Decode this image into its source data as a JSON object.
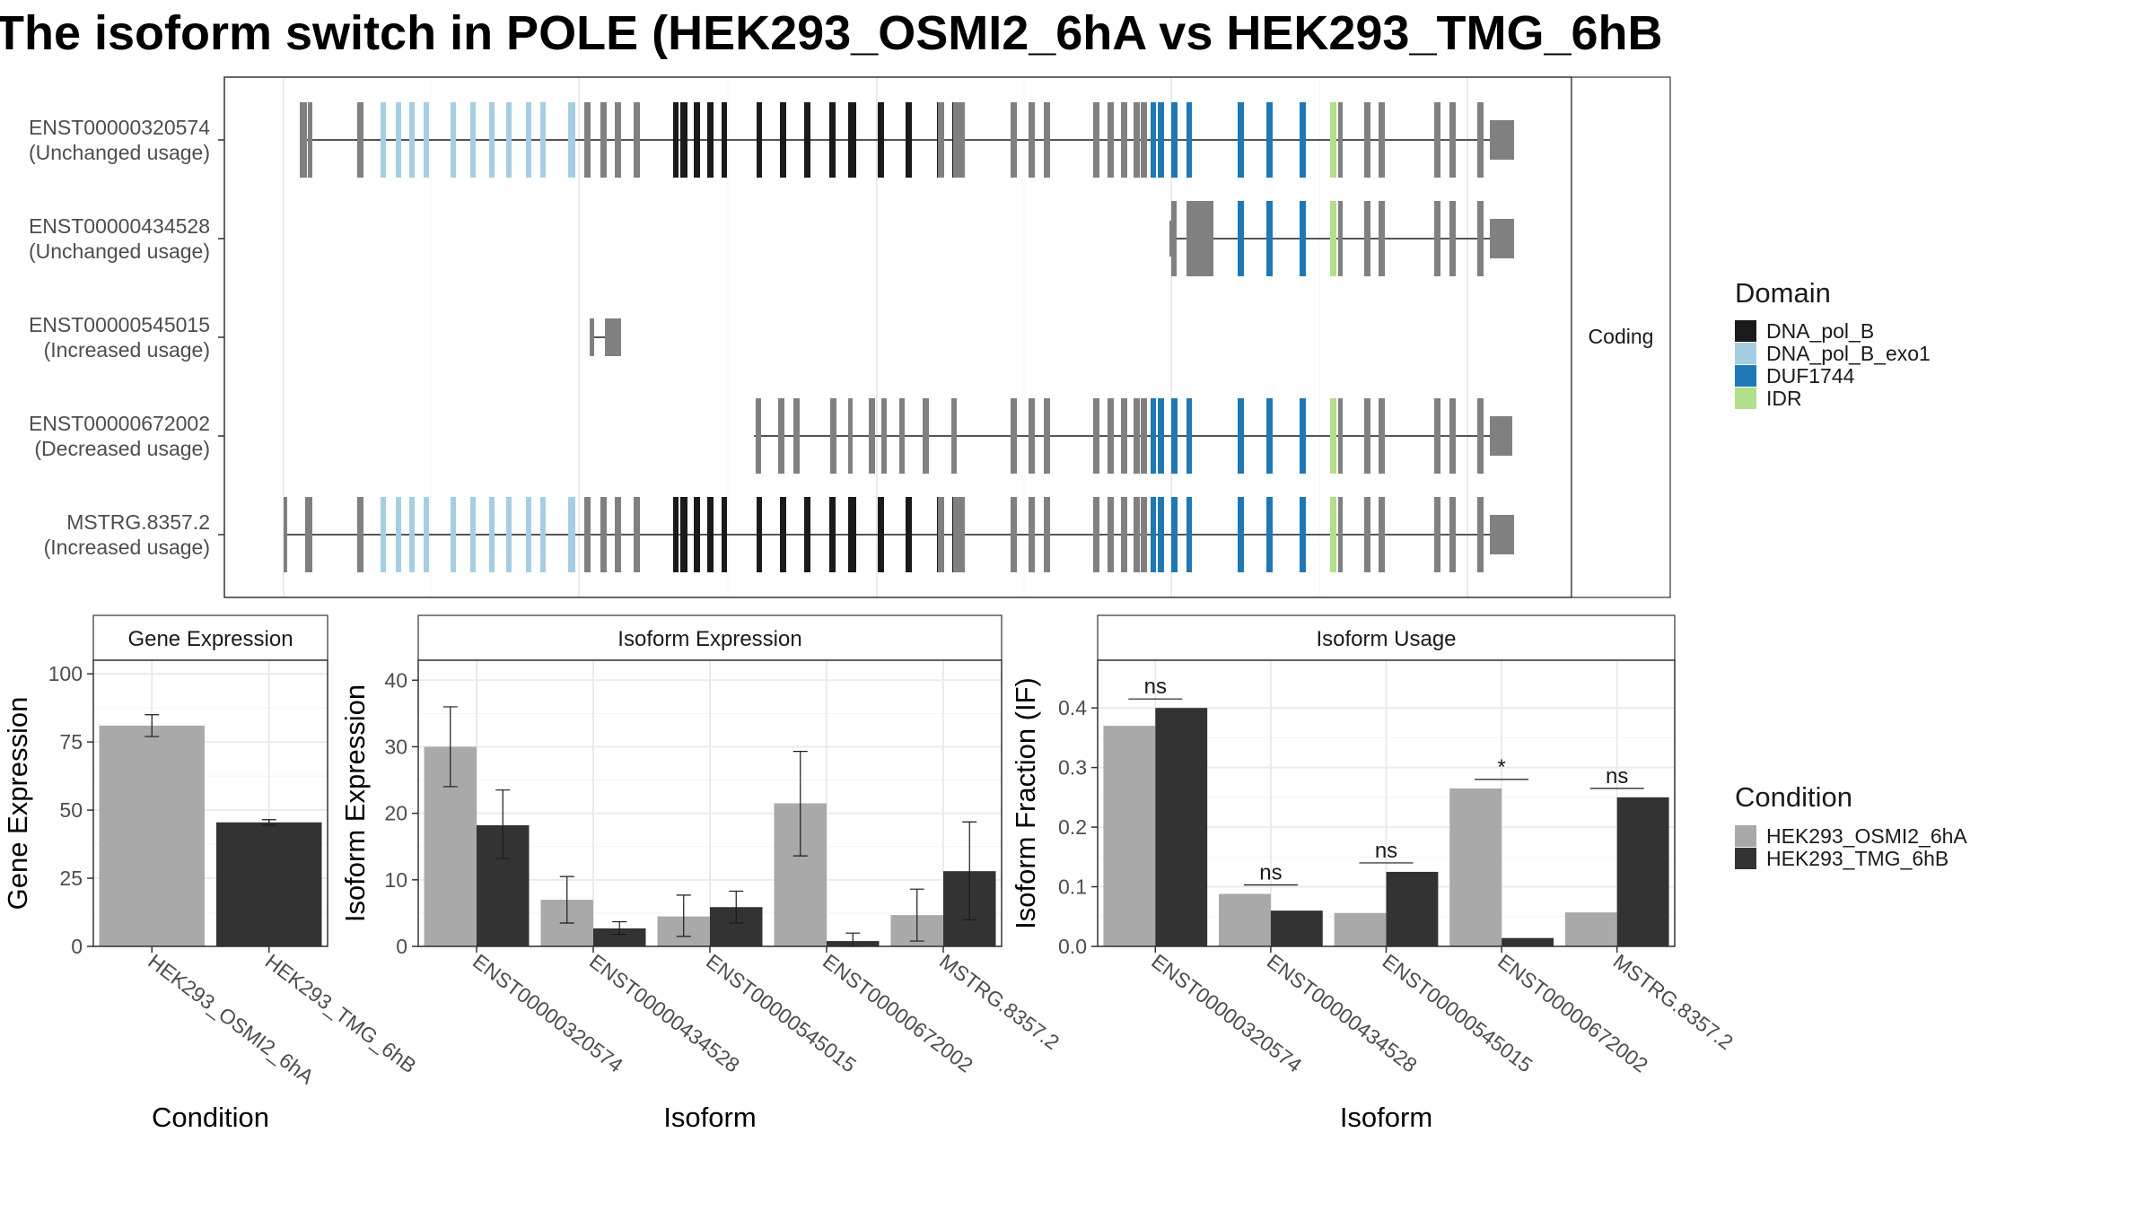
{
  "title": "The isoform switch in POLE (HEK293_OSMI2_6hA vs HEK293_TMG_6hB",
  "colors": {
    "exon": "#808080",
    "line": "#555555",
    "cond1": "#a9a9a9",
    "cond2": "#333333",
    "grid": "#ebebeb",
    "frame": "#333333",
    "strip_bg": "#ffffff"
  },
  "structure": {
    "strip_label": "Coding",
    "transcripts": [
      {
        "id": "ENST00000320574",
        "status": "(Unchanged usage)"
      },
      {
        "id": "ENST00000434528",
        "status": "(Unchanged usage)"
      },
      {
        "id": "ENST00000545015",
        "status": "(Increased usage)"
      },
      {
        "id": "ENST00000672002",
        "status": "(Decreased usage)"
      },
      {
        "id": "MSTRG.8357.2",
        "status": "(Increased usage)"
      }
    ]
  },
  "legends": {
    "domain": {
      "title": "Domain",
      "items": [
        {
          "label": "DNA_pol_B",
          "color": "#1a1a1a"
        },
        {
          "label": "DNA_pol_B_exo1",
          "color": "#a6cee3"
        },
        {
          "label": "DUF1744",
          "color": "#1f78b4"
        },
        {
          "label": "IDR",
          "color": "#b2df8a"
        }
      ]
    },
    "condition": {
      "title": "Condition",
      "items": [
        {
          "label": "HEK293_OSMI2_6hA",
          "color": "#a9a9a9"
        },
        {
          "label": "HEK293_TMG_6hB",
          "color": "#333333"
        }
      ]
    }
  },
  "chart_data": [
    {
      "type": "bar",
      "title": "Gene Expression",
      "xlabel": "Condition",
      "ylabel": "Gene Expression",
      "ylim": [
        0,
        105
      ],
      "yticks": [
        0,
        25,
        50,
        75,
        100
      ],
      "categories": [
        "HEK293_OSMI2_6hA",
        "HEK293_TMG_6hB"
      ],
      "values": [
        81,
        45.5
      ],
      "error": [
        [
          77,
          85
        ],
        [
          44.5,
          46.5
        ]
      ]
    },
    {
      "type": "bar",
      "title": "Isoform Expression",
      "xlabel": "Isoform",
      "ylabel": "Isoform Expression",
      "ylim": [
        0,
        43
      ],
      "yticks": [
        0,
        10,
        20,
        30,
        40
      ],
      "categories": [
        "ENST00000320574",
        "ENST00000434528",
        "ENST00000545015",
        "ENST00000672002",
        "MSTRG.8357.2"
      ],
      "series": [
        {
          "name": "HEK293_OSMI2_6hA",
          "values": [
            30,
            7,
            4.5,
            21.5,
            4.7
          ],
          "error": [
            [
              24,
              36
            ],
            [
              3.5,
              10.5
            ],
            [
              1.5,
              7.7
            ],
            [
              13.6,
              29.3
            ],
            [
              0.8,
              8.6
            ]
          ]
        },
        {
          "name": "HEK293_TMG_6hB",
          "values": [
            18.2,
            2.7,
            5.9,
            0.8,
            11.3
          ],
          "error": [
            [
              13.2,
              23.5
            ],
            [
              1.8,
              3.7
            ],
            [
              3.5,
              8.3
            ],
            [
              0,
              2
            ],
            [
              4,
              18.7
            ]
          ]
        }
      ]
    },
    {
      "type": "bar",
      "title": "Isoform Usage",
      "xlabel": "Isoform",
      "ylabel": "Isoform Fraction (IF)",
      "ylim": [
        0,
        0.48
      ],
      "yticks": [
        0.0,
        0.1,
        0.2,
        0.3,
        0.4
      ],
      "ytick_labels": [
        "0.0",
        "0.1",
        "0.2",
        "0.3",
        "0.4"
      ],
      "categories": [
        "ENST00000320574",
        "ENST00000434528",
        "ENST00000545015",
        "ENST00000672002",
        "MSTRG.8357.2"
      ],
      "series": [
        {
          "name": "HEK293_OSMI2_6hA",
          "values": [
            0.37,
            0.088,
            0.056,
            0.265,
            0.057
          ]
        },
        {
          "name": "HEK293_TMG_6hB",
          "values": [
            0.4,
            0.06,
            0.125,
            0.014,
            0.25
          ]
        }
      ],
      "significance": [
        "ns",
        "ns",
        "ns",
        "*",
        "ns"
      ]
    }
  ]
}
